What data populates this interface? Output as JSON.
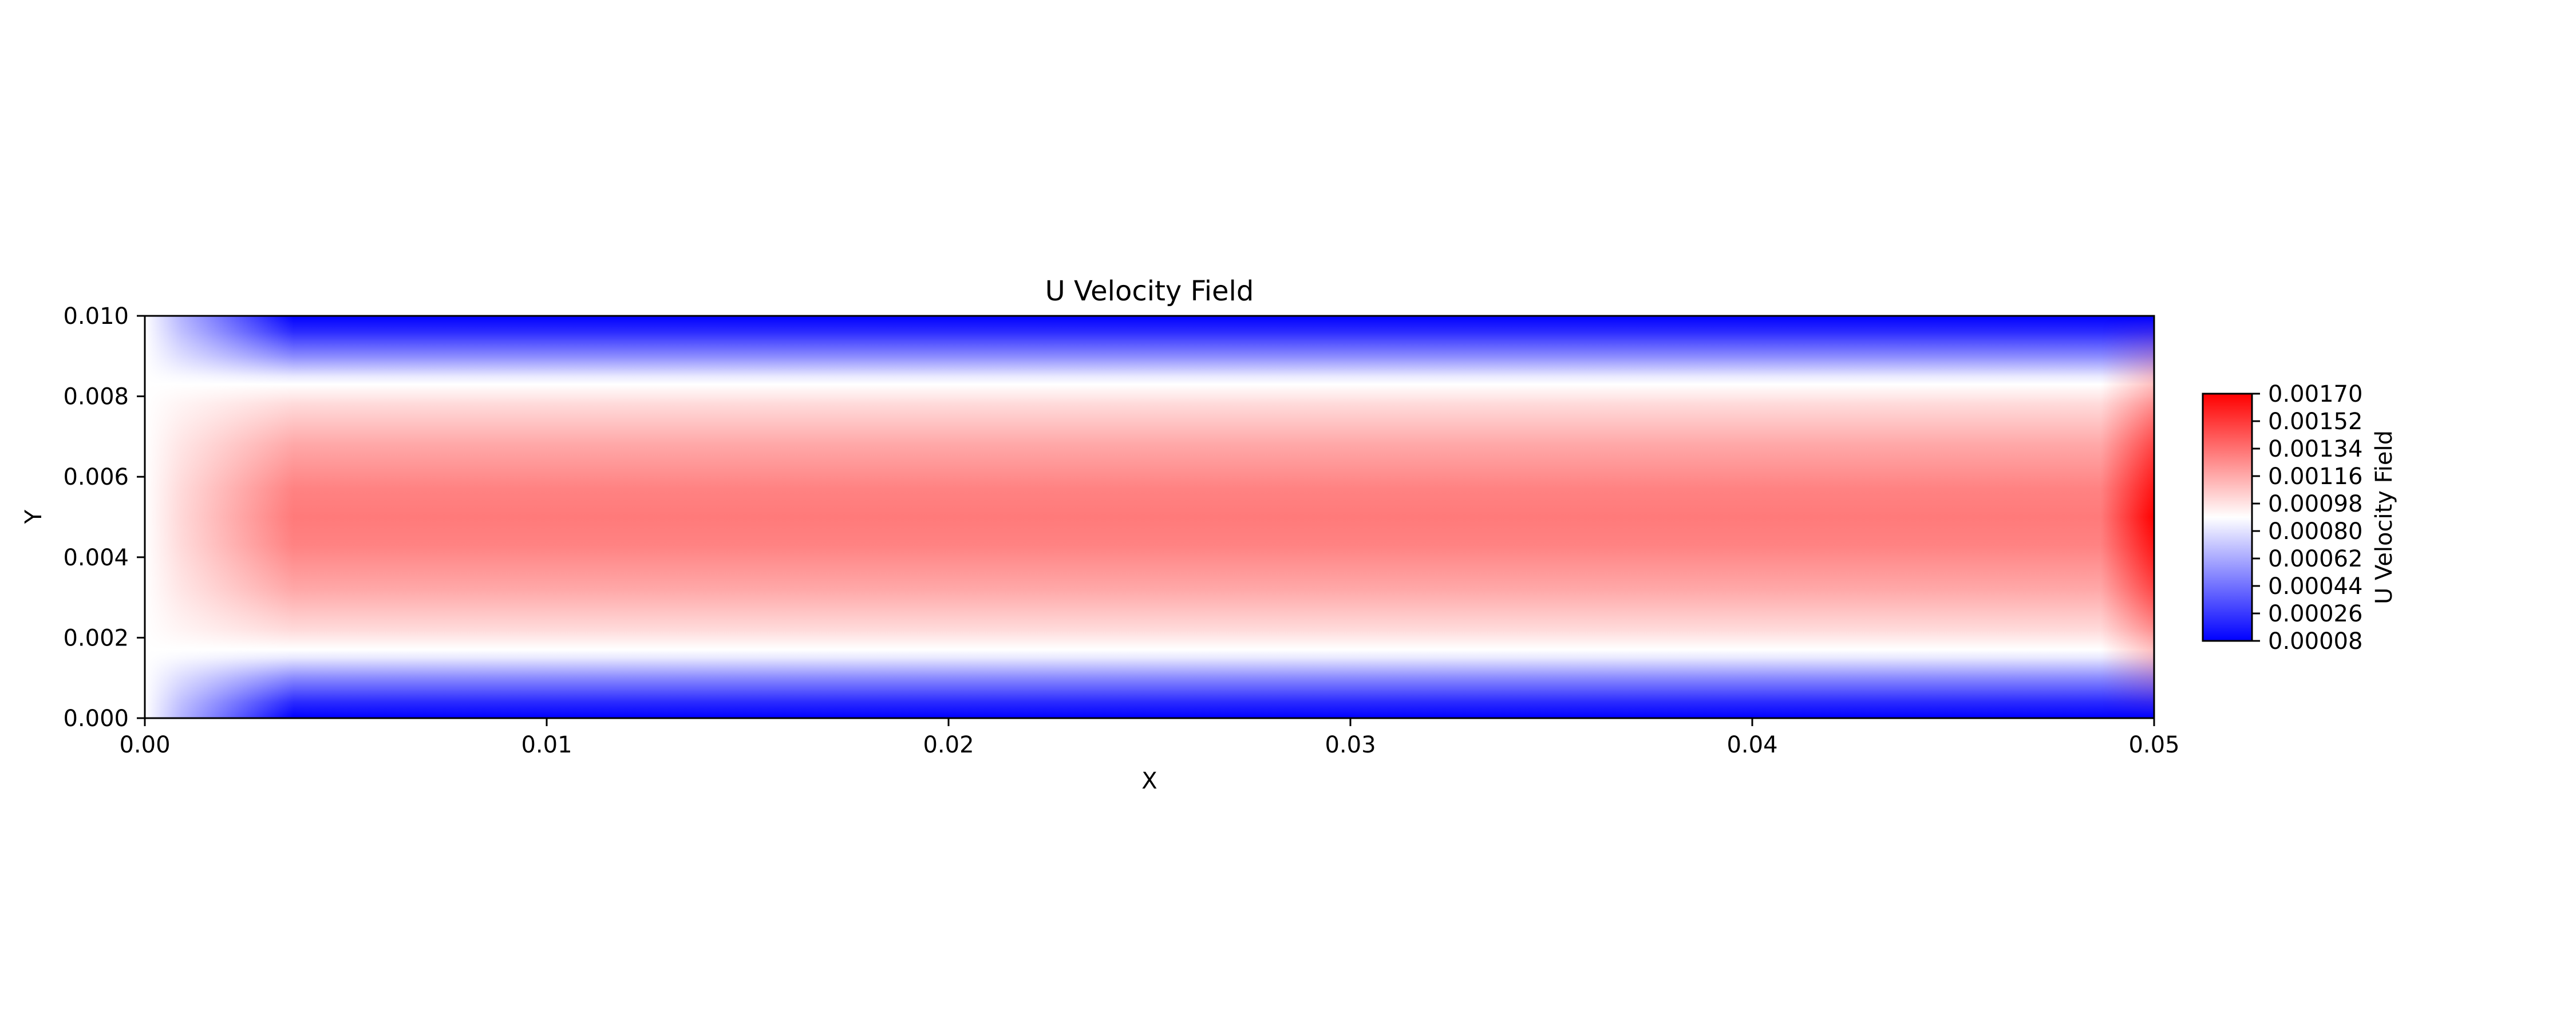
{
  "chart_data": {
    "type": "heatmap",
    "title": "U Velocity Field",
    "xlabel": "X",
    "ylabel": "Y",
    "xlim": [
      0.0,
      0.05
    ],
    "ylim": [
      0.0,
      0.01
    ],
    "x_ticks": [
      "0.00",
      "0.01",
      "0.02",
      "0.03",
      "0.04",
      "0.05"
    ],
    "y_ticks": [
      "0.000",
      "0.002",
      "0.004",
      "0.006",
      "0.008",
      "0.010"
    ],
    "colormap": "bwr",
    "colorbar": {
      "label": "U Velocity Field",
      "range": [
        8e-05,
        0.0017
      ],
      "ticks": [
        "0.00170",
        "0.00152",
        "0.00134",
        "0.00116",
        "0.00098",
        "0.00080",
        "0.00062",
        "0.00044",
        "0.00026",
        "0.00008"
      ]
    },
    "field": {
      "description": "channel flow velocity: near zero at top and bottom walls (y=0, y=0.01), peak at centerline",
      "centerline_value": 0.00136,
      "outlet_peak_value": 0.0017,
      "wall_value": 8e-05,
      "inlet_value": 0.00098
    },
    "grid": false
  }
}
